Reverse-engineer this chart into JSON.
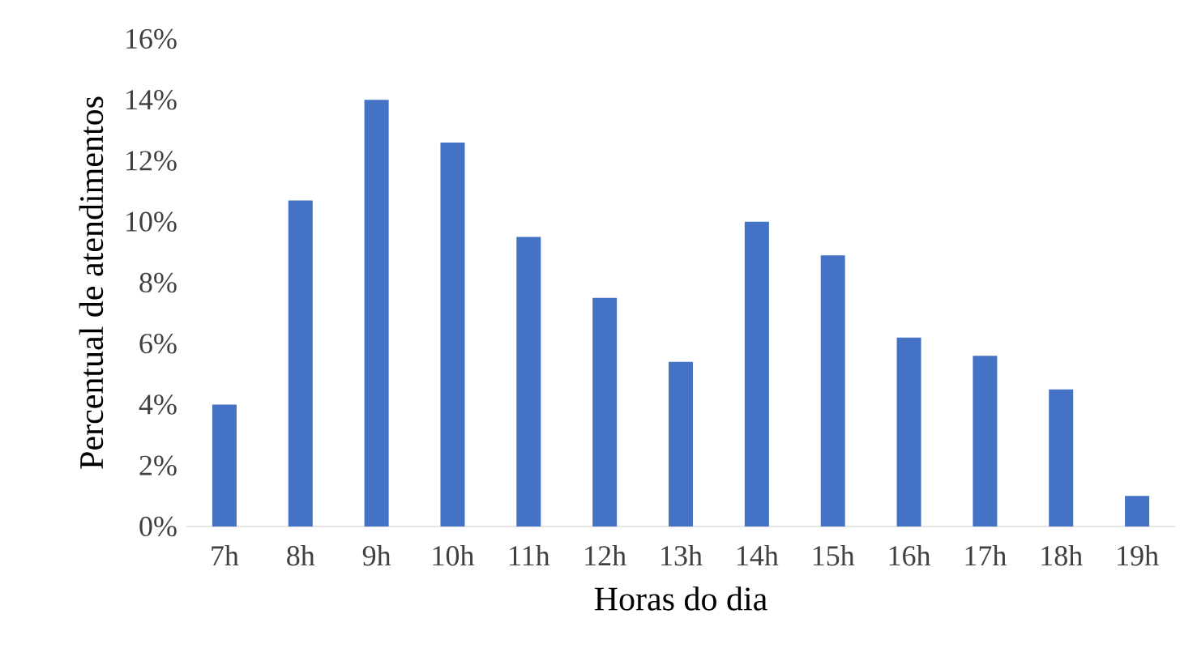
{
  "chart_data": {
    "type": "bar",
    "xlabel": "Horas do dia",
    "ylabel": "Percentual de atendimentos",
    "categories": [
      "7h",
      "8h",
      "9h",
      "10h",
      "11h",
      "12h",
      "13h",
      "14h",
      "15h",
      "16h",
      "17h",
      "18h",
      "19h"
    ],
    "values": [
      4.0,
      10.7,
      14.0,
      12.6,
      9.5,
      7.5,
      5.4,
      10.0,
      8.9,
      6.2,
      5.6,
      4.5,
      1.0
    ],
    "color": "#4472c4",
    "ylim": [
      0,
      16
    ],
    "yticks": [
      {
        "value": 0,
        "label": "0%"
      },
      {
        "value": 2,
        "label": "2%"
      },
      {
        "value": 4,
        "label": "4%"
      },
      {
        "value": 6,
        "label": "6%"
      },
      {
        "value": 8,
        "label": "8%"
      },
      {
        "value": 10,
        "label": "10%"
      },
      {
        "value": 12,
        "label": "12%"
      },
      {
        "value": 14,
        "label": "14%"
      },
      {
        "value": 16,
        "label": "16%"
      }
    ],
    "grid": false
  }
}
